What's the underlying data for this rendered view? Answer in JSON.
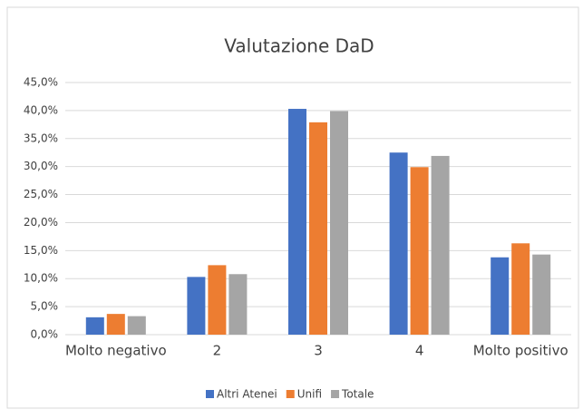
{
  "chart_data": {
    "type": "bar",
    "title": "Valutazione DaD",
    "categories": [
      "Molto negativo",
      "2",
      "3",
      "4",
      "Molto positivo"
    ],
    "series": [
      {
        "name": "Altri Atenei",
        "color": "#4472c4",
        "values": [
          3.1,
          10.3,
          40.3,
          32.5,
          13.8
        ]
      },
      {
        "name": "Unifi",
        "color": "#ed7d31",
        "values": [
          3.7,
          12.4,
          37.9,
          29.9,
          16.3
        ]
      },
      {
        "name": "Totale",
        "color": "#a5a5a5",
        "values": [
          3.3,
          10.8,
          39.9,
          31.9,
          14.3
        ]
      }
    ],
    "ylim": [
      0,
      45
    ],
    "yticks": [
      {
        "value": 0,
        "label": "0,0%"
      },
      {
        "value": 5,
        "label": "5,0%"
      },
      {
        "value": 10,
        "label": "10,0%"
      },
      {
        "value": 15,
        "label": "15,0%"
      },
      {
        "value": 20,
        "label": "20,0%"
      },
      {
        "value": 25,
        "label": "25,0%"
      },
      {
        "value": 30,
        "label": "30,0%"
      },
      {
        "value": 35,
        "label": "35,0%"
      },
      {
        "value": 40,
        "label": "40,0%"
      },
      {
        "value": 45,
        "label": "45,0%"
      }
    ],
    "grid": true,
    "legend": "bottom"
  }
}
